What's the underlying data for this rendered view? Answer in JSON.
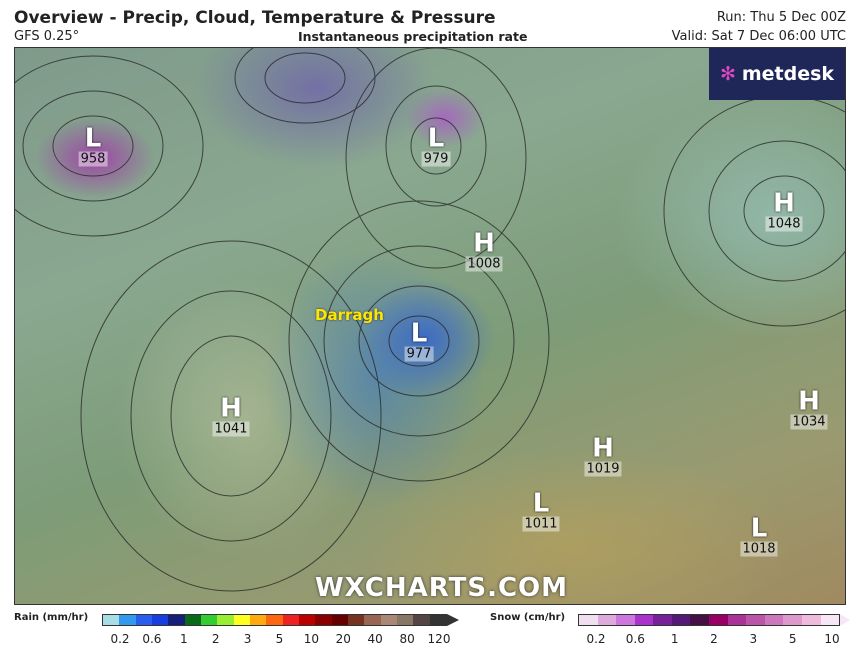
{
  "header": {
    "title": "Overview - Precip, Cloud, Temperature & Pressure",
    "model": "GFS 0.25°",
    "subtitle": "Instantaneous precipitation rate",
    "run": "Run: Thu 5 Dec 00Z",
    "valid": "Valid: Sat 7 Dec 06:00 UTC"
  },
  "logo": {
    "text": "metdesk"
  },
  "watermark": "WXCHARTS.COM",
  "storm_name": "Darragh",
  "pressure_centers": [
    {
      "type": "L",
      "value": "958"
    },
    {
      "type": "L",
      "value": "979"
    },
    {
      "type": "H",
      "value": "1008"
    },
    {
      "type": "L",
      "value": "977"
    },
    {
      "type": "H",
      "value": "1041"
    },
    {
      "type": "H",
      "value": "1048"
    },
    {
      "type": "H",
      "value": "1034"
    },
    {
      "type": "H",
      "value": "1019"
    },
    {
      "type": "L",
      "value": "1011"
    },
    {
      "type": "L",
      "value": "1018"
    }
  ],
  "legend": {
    "rain": {
      "label": "Rain (mm/hr)",
      "ticks": [
        "0.2",
        "0.6",
        "1",
        "2",
        "3",
        "5",
        "10",
        "20",
        "40",
        "80",
        "120"
      ],
      "colors": [
        "#a8dde6",
        "#3399ee",
        "#2a5cee",
        "#1a3de0",
        "#16207a",
        "#0a6a1a",
        "#33cc33",
        "#99ee33",
        "#ffff22",
        "#ffaa11",
        "#ff6611",
        "#ee2222",
        "#bb0000",
        "#880000",
        "#660000",
        "#773322",
        "#996655",
        "#aa8877",
        "#887766",
        "#554444",
        "#333333"
      ]
    },
    "snow": {
      "label": "Snow (cm/hr)",
      "ticks": [
        "0.2",
        "0.6",
        "1",
        "2",
        "3",
        "5",
        "10"
      ],
      "colors": [
        "#f0dff0",
        "#ddaadd",
        "#cc77dd",
        "#aa33cc",
        "#772299",
        "#551a77",
        "#441144",
        "#990066",
        "#aa3399",
        "#bb55aa",
        "#cc77bb",
        "#dd99cc",
        "#eebbdd",
        "#f6e6f6"
      ]
    }
  }
}
